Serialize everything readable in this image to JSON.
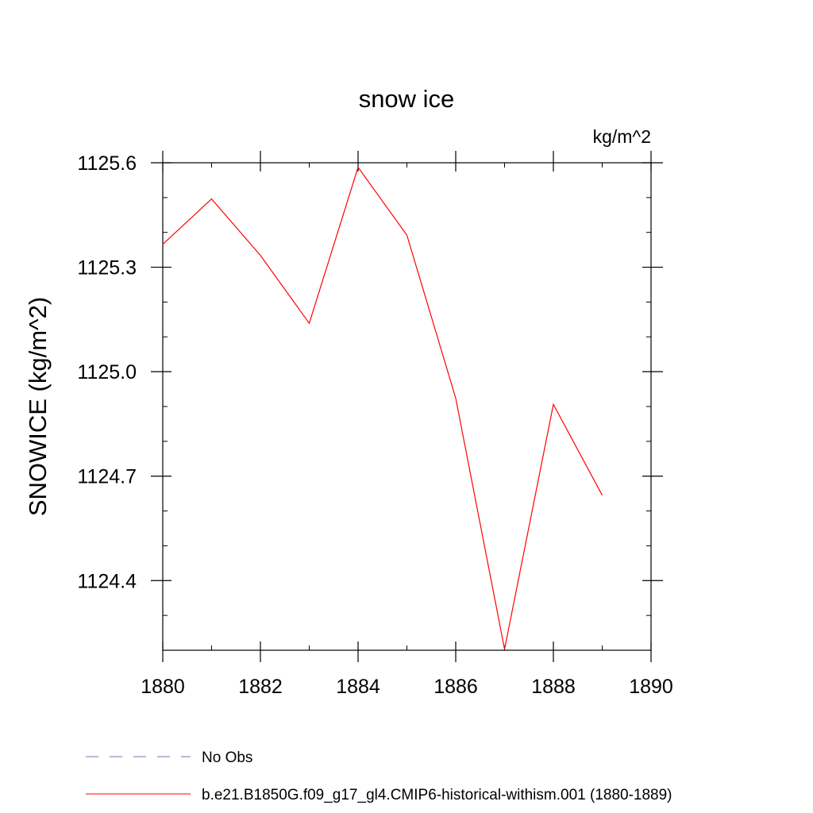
{
  "chart_data": {
    "type": "line",
    "title": "snow ice",
    "units": "kg/m^2",
    "ylabel": "SNOWICE  (kg/m^2)",
    "xlabel": "",
    "xlim": [
      1880,
      1890
    ],
    "ylim": [
      1124.2,
      1125.6
    ],
    "x_ticks": [
      1880,
      1882,
      1884,
      1886,
      1888,
      1890
    ],
    "x_tick_labels": [
      "1880",
      "1882",
      "1884",
      "1886",
      "1888",
      "1890"
    ],
    "y_ticks": [
      1124.4,
      1124.7,
      1125.0,
      1125.3,
      1125.6
    ],
    "y_tick_labels": [
      "1124.4",
      "1124.7",
      "1125.0",
      "1125.3",
      "1125.6"
    ],
    "grid": false,
    "legend_position": "bottom",
    "series": [
      {
        "name": "b.e21.B1850G.f09_g17_gl4.CMIP6-historical-withism.001 (1880-1889)",
        "color": "#ff0000",
        "style": "solid",
        "x": [
          1880,
          1881,
          1882,
          1883,
          1884,
          1885,
          1886,
          1887,
          1888,
          1889
        ],
        "y": [
          1125.366,
          1125.496,
          1125.334,
          1125.139,
          1125.587,
          1125.392,
          1124.924,
          1124.203,
          1124.906,
          1124.645
        ]
      }
    ],
    "legend": [
      {
        "label": "No Obs",
        "color": "#7a6fb0",
        "style": "dashed"
      },
      {
        "label": "b.e21.B1850G.f09_g17_gl4.CMIP6-historical-withism.001 (1880-1889)",
        "color": "#ff0000",
        "style": "solid"
      }
    ]
  }
}
